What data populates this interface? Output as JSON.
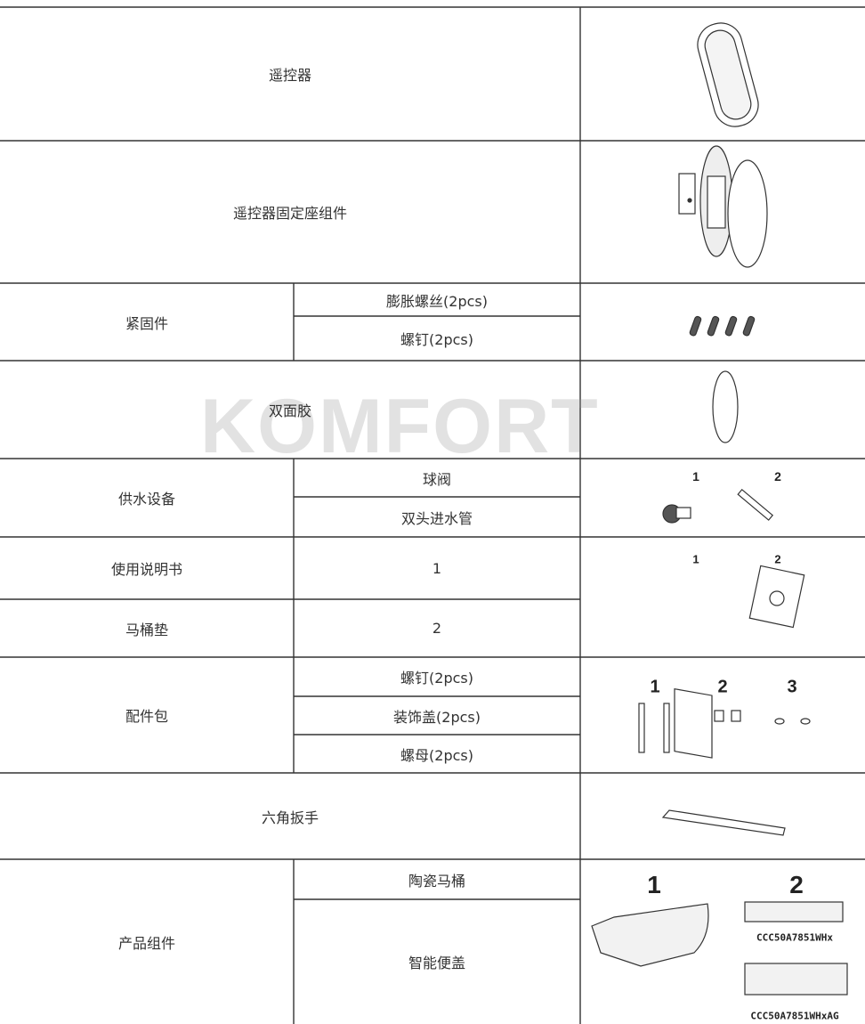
{
  "watermark": "KOMFORT",
  "table": {
    "rows": [
      {
        "item": "遥控器"
      },
      {
        "item": "遥控器固定座组件"
      },
      {
        "item": "紧固件",
        "subitems": [
          "膨胀螺丝(2pcs)",
          "螺钉(2pcs)"
        ]
      },
      {
        "item": "双面胶"
      },
      {
        "item": "供水设备",
        "subitems": [
          "球阀",
          "双头进水管"
        ],
        "labels": [
          "1",
          "2"
        ]
      },
      {
        "item": "使用说明书",
        "value": "1",
        "labels": [
          "1",
          "2"
        ]
      },
      {
        "item": "马桶垫",
        "value": "2"
      },
      {
        "item": "配件包",
        "subitems": [
          "螺钉(2pcs)",
          "装饰盖(2pcs)",
          "螺母(2pcs)"
        ],
        "labels": [
          "1",
          "2",
          "3"
        ]
      },
      {
        "item": "六角扳手"
      },
      {
        "item": "产品组件",
        "subitems": [
          "陶瓷马桶",
          "智能便盖"
        ],
        "labels": [
          "1",
          "2"
        ],
        "models": [
          "CCC50A7851WHx",
          "CCC50A7851WHxAG"
        ]
      }
    ]
  }
}
